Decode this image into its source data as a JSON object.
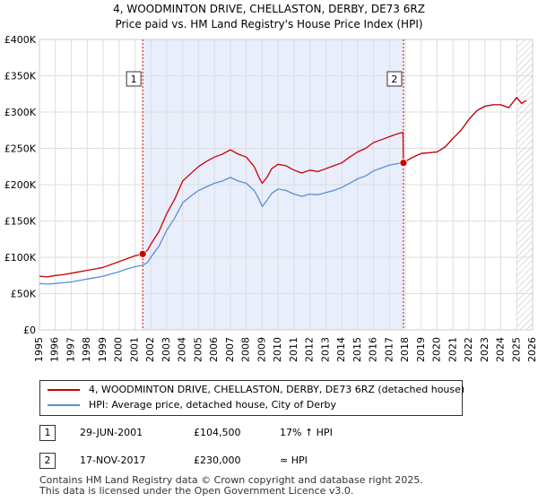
{
  "chart_data": {
    "type": "line",
    "title": "4, WOODMINTON DRIVE, CHELLASTON, DERBY, DE73 6RZ",
    "subtitle": "Price paid vs. HM Land Registry's House Price Index (HPI)",
    "xlabel": "",
    "ylabel": "",
    "xlim": [
      1995,
      2026
    ],
    "ylim": [
      0,
      400000
    ],
    "y_ticks": [
      0,
      50000,
      100000,
      150000,
      200000,
      250000,
      300000,
      350000,
      400000
    ],
    "y_tick_labels": [
      "£0",
      "£50K",
      "£100K",
      "£150K",
      "£200K",
      "£250K",
      "£300K",
      "£350K",
      "£400K"
    ],
    "x_ticks": [
      1995,
      1996,
      1997,
      1998,
      1999,
      2000,
      2001,
      2002,
      2003,
      2004,
      2005,
      2006,
      2007,
      2008,
      2009,
      2010,
      2011,
      2012,
      2013,
      2014,
      2015,
      2016,
      2017,
      2018,
      2019,
      2020,
      2021,
      2022,
      2023,
      2024,
      2025,
      2026
    ],
    "x_tick_labels": [
      "1995",
      "1996",
      "1997",
      "1998",
      "1999",
      "2000",
      "2001",
      "2002",
      "2003",
      "2004",
      "2005",
      "2006",
      "2007",
      "2008",
      "2009",
      "2010",
      "2011",
      "2012",
      "2013",
      "2014",
      "2015",
      "2016",
      "2017",
      "2018",
      "2019",
      "2020",
      "2021",
      "2022",
      "2023",
      "2024",
      "2025",
      "2026"
    ],
    "shaded_range": [
      2001.49,
      2017.88
    ],
    "forecast_from": 2025.0,
    "series": [
      {
        "name": "4, WOODMINTON DRIVE, CHELLASTON, DERBY, DE73 6RZ (detached house)",
        "color": "#cc0000",
        "x": [
          1995.0,
          1995.5,
          1996.0,
          1996.5,
          1997.0,
          1997.5,
          1998.0,
          1998.5,
          1999.0,
          1999.5,
          2000.0,
          2000.5,
          2001.0,
          2001.49,
          2001.8,
          2002.0,
          2002.5,
          2003.0,
          2003.5,
          2004.0,
          2004.5,
          2005.0,
          2005.5,
          2006.0,
          2006.5,
          2007.0,
          2007.5,
          2008.0,
          2008.5,
          2008.8,
          2009.0,
          2009.3,
          2009.6,
          2010.0,
          2010.5,
          2011.0,
          2011.5,
          2012.0,
          2012.5,
          2013.0,
          2013.5,
          2014.0,
          2014.5,
          2015.0,
          2015.5,
          2016.0,
          2016.5,
          2017.0,
          2017.5,
          2017.85,
          2017.88,
          2018.0,
          2018.5,
          2019.0,
          2019.5,
          2020.0,
          2020.5,
          2021.0,
          2021.5,
          2022.0,
          2022.5,
          2023.0,
          2023.5,
          2024.0,
          2024.5,
          2025.0,
          2025.3,
          2025.6
        ],
        "values": [
          74000,
          73000,
          75000,
          76000,
          78000,
          80000,
          82000,
          84000,
          86000,
          90000,
          94000,
          98000,
          102000,
          104500,
          110000,
          118000,
          135000,
          160000,
          180000,
          205000,
          215000,
          225000,
          232000,
          238000,
          242000,
          248000,
          242000,
          238000,
          225000,
          210000,
          202000,
          210000,
          222000,
          228000,
          226000,
          220000,
          216000,
          220000,
          218000,
          222000,
          226000,
          230000,
          238000,
          245000,
          250000,
          258000,
          262000,
          266000,
          270000,
          272000,
          230000,
          232000,
          238000,
          243000,
          244000,
          245000,
          252000,
          264000,
          275000,
          290000,
          302000,
          308000,
          310000,
          310000,
          306000,
          320000,
          312000,
          316000
        ]
      },
      {
        "name": "HPI: Average price, detached house, City of Derby",
        "color": "#5b8fd4",
        "x": [
          1995.0,
          1995.5,
          1996.0,
          1996.5,
          1997.0,
          1997.5,
          1998.0,
          1998.5,
          1999.0,
          1999.5,
          2000.0,
          2000.5,
          2001.0,
          2001.49,
          2001.8,
          2002.0,
          2002.5,
          2003.0,
          2003.5,
          2004.0,
          2004.5,
          2005.0,
          2005.5,
          2006.0,
          2006.5,
          2007.0,
          2007.5,
          2008.0,
          2008.5,
          2008.8,
          2009.0,
          2009.3,
          2009.6,
          2010.0,
          2010.5,
          2011.0,
          2011.5,
          2012.0,
          2012.5,
          2013.0,
          2013.5,
          2014.0,
          2014.5,
          2015.0,
          2015.5,
          2016.0,
          2016.5,
          2017.0,
          2017.5,
          2017.88,
          2018.0,
          2018.5,
          2019.0,
          2019.5,
          2020.0,
          2020.5,
          2021.0,
          2021.5,
          2022.0,
          2022.5,
          2023.0,
          2023.5,
          2024.0,
          2024.5,
          2025.0,
          2025.3,
          2025.6
        ],
        "values": [
          64000,
          63000,
          64000,
          65000,
          66000,
          68000,
          70000,
          72000,
          74000,
          77000,
          80000,
          84000,
          87000,
          89000,
          93000,
          100000,
          115000,
          137000,
          154000,
          175000,
          184000,
          192000,
          197000,
          202000,
          205000,
          210000,
          205000,
          202000,
          192000,
          180000,
          170000,
          178000,
          188000,
          194000,
          192000,
          187000,
          184000,
          187000,
          186000,
          189000,
          192000,
          196000,
          202000,
          208000,
          212000,
          219000,
          223000,
          227000,
          229000,
          230000,
          232000,
          238000,
          243000,
          244000,
          245000,
          252000,
          264000,
          275000,
          290000,
          302000,
          308000,
          310000,
          310000,
          306000,
          320000,
          312000,
          316000
        ]
      }
    ],
    "sales": [
      {
        "id": "1",
        "x": 2001.49,
        "value": 104500
      },
      {
        "id": "2",
        "x": 2017.88,
        "value": 230000
      }
    ]
  },
  "legend": {
    "items": [
      {
        "label": "4, WOODMINTON DRIVE, CHELLASTON, DERBY, DE73 6RZ (detached house)",
        "color": "#cc0000"
      },
      {
        "label": "HPI: Average price, detached house, City of Derby",
        "color": "#5b8fd4"
      }
    ]
  },
  "transactions": [
    {
      "id": "1",
      "date": "29-JUN-2001",
      "price": "£104,500",
      "hpi": "17% ↑ HPI"
    },
    {
      "id": "2",
      "date": "17-NOV-2017",
      "price": "£230,000",
      "hpi": "≈ HPI"
    }
  ],
  "footer": {
    "line1": "Contains HM Land Registry data © Crown copyright and database right 2025.",
    "line2": "This data is licensed under the Open Government Licence v3.0."
  }
}
